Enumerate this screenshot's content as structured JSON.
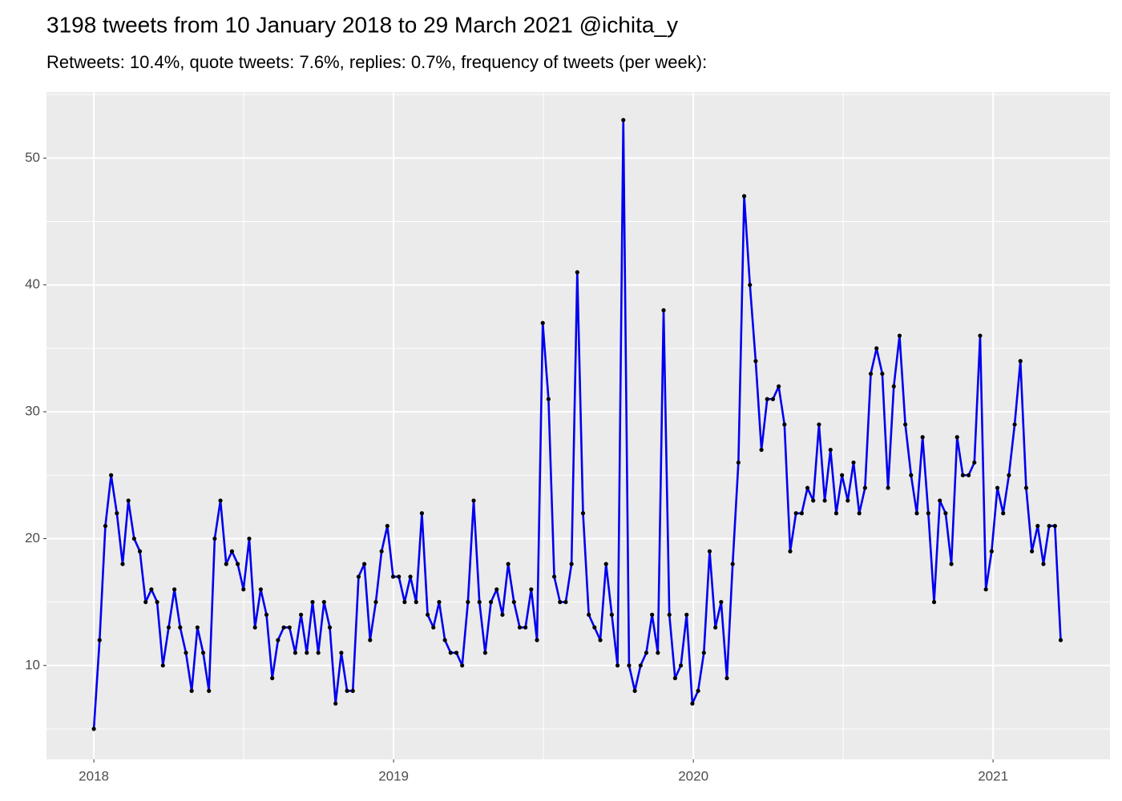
{
  "chart_data": {
    "type": "line",
    "title": "3198 tweets from 10 January 2018 to 29 March 2021 @ichita_y",
    "subtitle": "Retweets: 10.4%, quote tweets: 7.6%, replies: 0.7%, frequency of tweets (per week):",
    "x": [
      2018,
      2018.0192,
      2018.0384,
      2018.0576,
      2018.0768,
      2018.096,
      2018.1152,
      2018.1344,
      2018.1536,
      2018.1728,
      2018.192,
      2018.2112,
      2018.2304,
      2018.2496,
      2018.2688,
      2018.288,
      2018.3072,
      2018.3264,
      2018.3456,
      2018.3648,
      2018.384,
      2018.4032,
      2018.4224,
      2018.4416,
      2018.4608,
      2018.48,
      2018.4992,
      2018.5184,
      2018.5376,
      2018.5568,
      2018.576,
      2018.5952,
      2018.6144,
      2018.6336,
      2018.6528,
      2018.672,
      2018.6912,
      2018.7104,
      2018.7296,
      2018.7488,
      2018.768,
      2018.7872,
      2018.8064,
      2018.8256,
      2018.8448,
      2018.864,
      2018.8832,
      2018.9024,
      2018.9216,
      2018.9408,
      2018.96,
      2018.9792,
      2018.9984,
      2019.0176,
      2019.0368,
      2019.056,
      2019.0752,
      2019.0944,
      2019.1136,
      2019.1328,
      2019.152,
      2019.1712,
      2019.1904,
      2019.2096,
      2019.2288,
      2019.248,
      2019.2672,
      2019.2864,
      2019.3056,
      2019.3248,
      2019.344,
      2019.3632,
      2019.3824,
      2019.4016,
      2019.4208,
      2019.44,
      2019.4592,
      2019.4784,
      2019.4976,
      2019.5168,
      2019.536,
      2019.5552,
      2019.5744,
      2019.5936,
      2019.6128,
      2019.632,
      2019.6512,
      2019.6704,
      2019.6896,
      2019.7088,
      2019.728,
      2019.7472,
      2019.7664,
      2019.7856,
      2019.8048,
      2019.824,
      2019.8432,
      2019.8624,
      2019.8816,
      2019.9008,
      2019.92,
      2019.9392,
      2019.9584,
      2019.9776,
      2019.9968,
      2020.016,
      2020.0352,
      2020.0544,
      2020.0736,
      2020.0928,
      2020.112,
      2020.1312,
      2020.1504,
      2020.1696,
      2020.1888,
      2020.208,
      2020.2272,
      2020.2464,
      2020.2656,
      2020.2848,
      2020.304,
      2020.3232,
      2020.3424,
      2020.3616,
      2020.3808,
      2020.4,
      2020.4192,
      2020.4384,
      2020.4576,
      2020.4768,
      2020.496,
      2020.5152,
      2020.5344,
      2020.5536,
      2020.5728,
      2020.592,
      2020.6112,
      2020.6304,
      2020.6496,
      2020.6688,
      2020.688,
      2020.7072,
      2020.7264,
      2020.7456,
      2020.7648,
      2020.784,
      2020.8032,
      2020.8224,
      2020.8416,
      2020.8608,
      2020.88,
      2020.8992,
      2020.9184,
      2020.9376,
      2020.9568,
      2020.976,
      2020.9952,
      2021.0144,
      2021.0336,
      2021.0528,
      2021.072,
      2021.0912,
      2021.1104,
      2021.1296,
      2021.1488,
      2021.168,
      2021.1872,
      2021.2064,
      2021.2256
    ],
    "series": [
      {
        "color": "#0000ee",
        "point_color": "#000000",
        "values": [
          5,
          12,
          21,
          25,
          22,
          18,
          23,
          20,
          19,
          15,
          16,
          15,
          10,
          13,
          16,
          13,
          11,
          8,
          13,
          11,
          8,
          20,
          23,
          18,
          19,
          18,
          16,
          20,
          13,
          16,
          14,
          9,
          12,
          13,
          13,
          11,
          14,
          11,
          15,
          11,
          15,
          13,
          7,
          11,
          8,
          8,
          17,
          18,
          12,
          15,
          19,
          21,
          17,
          17,
          15,
          17,
          15,
          22,
          14,
          13,
          15,
          12,
          11,
          11,
          10,
          15,
          23,
          15,
          11,
          15,
          16,
          14,
          18,
          15,
          13,
          13,
          16,
          12,
          37,
          31,
          17,
          15,
          15,
          18,
          41,
          22,
          14,
          13,
          12,
          18,
          14,
          10,
          53,
          10,
          8,
          10,
          11,
          14,
          11,
          38,
          14,
          9,
          10,
          14,
          7,
          8,
          11,
          19,
          13,
          15,
          9,
          18,
          26,
          47,
          40,
          34,
          27,
          31,
          31,
          32,
          29,
          19,
          22,
          22,
          24,
          23,
          29,
          23,
          27,
          22,
          25,
          23,
          26,
          22,
          24,
          33,
          35,
          33,
          24,
          32,
          36,
          29,
          25,
          22,
          28,
          22,
          15,
          23,
          22,
          18,
          28,
          25,
          25,
          26,
          36,
          16,
          19,
          24,
          22,
          25,
          29,
          34,
          24,
          19,
          21,
          18,
          21,
          21,
          12
        ]
      }
    ],
    "xlim": [
      2017.842,
      2021.39
    ],
    "xticks": [
      2018,
      2019,
      2020,
      2021
    ],
    "ylim": [
      2.6,
      55.2
    ],
    "yticks": [
      10,
      20,
      30,
      40,
      50
    ],
    "grid": true,
    "panel_color": "#ebebeb"
  }
}
